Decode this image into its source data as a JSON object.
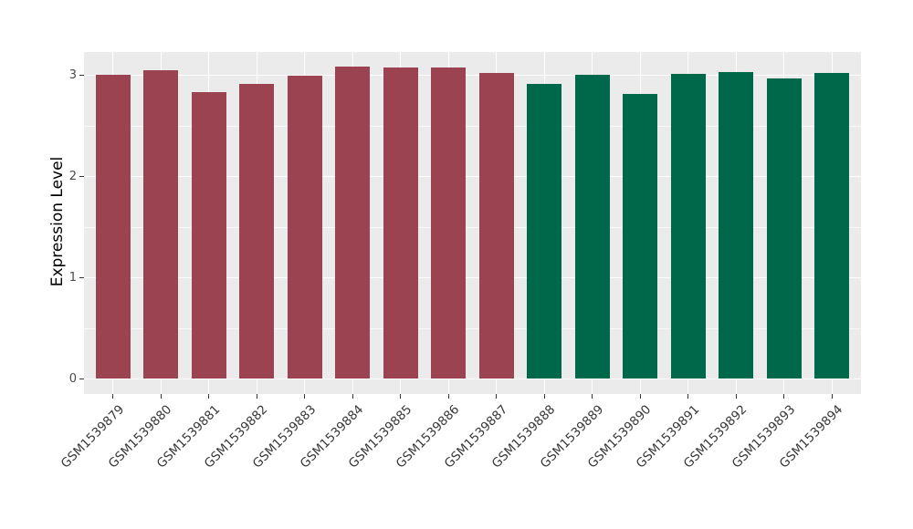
{
  "chart_data": {
    "type": "bar",
    "title": "",
    "xlabel": "",
    "ylabel": "Expression Level",
    "categories": [
      "GSM1539879",
      "GSM1539880",
      "GSM1539881",
      "GSM1539882",
      "GSM1539883",
      "GSM1539884",
      "GSM1539885",
      "GSM1539886",
      "GSM1539887",
      "GSM1539888",
      "GSM1539889",
      "GSM1539890",
      "GSM1539891",
      "GSM1539892",
      "GSM1539893",
      "GSM1539894"
    ],
    "values": [
      3.01,
      3.05,
      2.84,
      2.92,
      3.0,
      3.09,
      3.08,
      3.08,
      3.03,
      2.92,
      3.01,
      2.82,
      3.02,
      3.04,
      2.97,
      3.03
    ],
    "bar_colors": [
      "#9B4351",
      "#9B4351",
      "#9B4351",
      "#9B4351",
      "#9B4351",
      "#9B4351",
      "#9B4351",
      "#9B4351",
      "#9B4351",
      "#00684A",
      "#00684A",
      "#00684A",
      "#00684A",
      "#00684A",
      "#00684A",
      "#00684A"
    ],
    "groups": [
      {
        "color": "#9B4351",
        "first_index": 0,
        "last_index": 8
      },
      {
        "color": "#00684A",
        "first_index": 9,
        "last_index": 15
      }
    ],
    "yticks": [
      0,
      1,
      2,
      3
    ],
    "minor_gridlines": [
      0.5,
      1.5,
      2.5
    ],
    "ylim": [
      -0.16,
      3.24
    ],
    "grid": true,
    "legend": false,
    "panel_background": "#EBEBEB",
    "gridline_color": "#FFFFFF",
    "tick_color": "#333333"
  }
}
